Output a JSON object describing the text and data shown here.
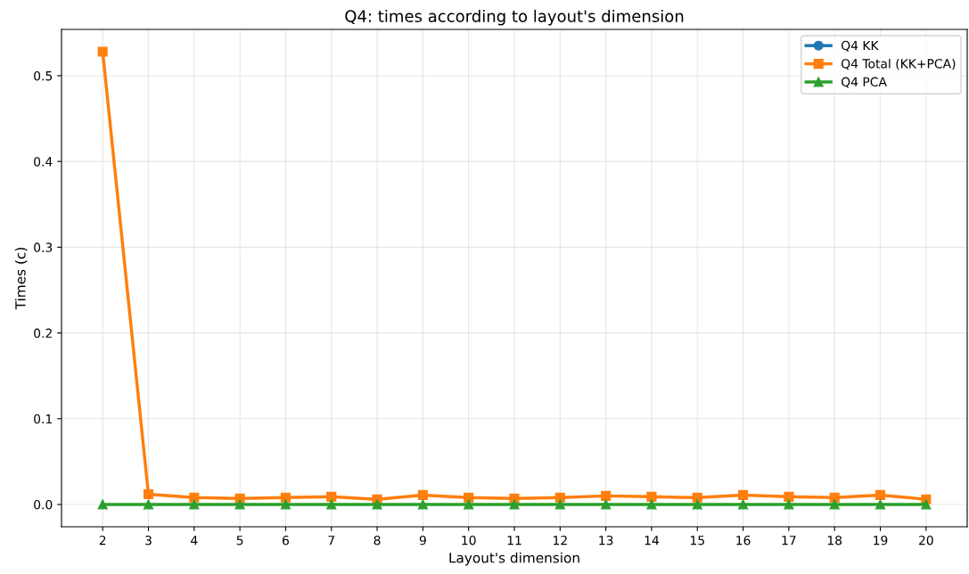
{
  "chart_data": {
    "type": "line",
    "title": "Q4: times according to layout's dimension",
    "xlabel": "Layout's dimension",
    "ylabel": "Times (c)",
    "x": [
      2,
      3,
      4,
      5,
      6,
      7,
      8,
      9,
      10,
      11,
      12,
      13,
      14,
      15,
      16,
      17,
      18,
      19,
      20
    ],
    "series": [
      {
        "name": "Q4 KK",
        "color": "#1f77b4",
        "marker": "circle",
        "values": [
          null,
          null,
          null,
          null,
          null,
          null,
          null,
          null,
          null,
          null,
          null,
          null,
          null,
          null,
          null,
          null,
          null,
          null,
          null
        ]
      },
      {
        "name": "Q4 Total (KK+PCA)",
        "color": "#ff7f0e",
        "marker": "square",
        "values": [
          0.528,
          0.012,
          0.008,
          0.007,
          0.008,
          0.009,
          0.006,
          0.011,
          0.008,
          0.007,
          0.008,
          0.01,
          0.009,
          0.008,
          0.011,
          0.009,
          0.008,
          0.011,
          0.006
        ]
      },
      {
        "name": "Q4 PCA",
        "color": "#2ca02c",
        "marker": "triangle",
        "values": [
          0,
          0,
          0,
          0,
          0,
          0,
          0,
          0,
          0,
          0,
          0,
          0,
          0,
          0,
          0,
          0,
          0,
          0,
          0
        ]
      }
    ],
    "xlim": [
      1.1,
      20.9
    ],
    "ylim": [
      -0.026,
      0.554
    ],
    "xticks": [
      2,
      3,
      4,
      5,
      6,
      7,
      8,
      9,
      10,
      11,
      12,
      13,
      14,
      15,
      16,
      17,
      18,
      19,
      20
    ],
    "yticks": [
      {
        "value": 0,
        "label": "0.0"
      },
      0.1,
      0.2,
      0.3,
      0.4,
      0.5
    ],
    "grid": true,
    "legend": "top right",
    "line_style": "solid"
  }
}
